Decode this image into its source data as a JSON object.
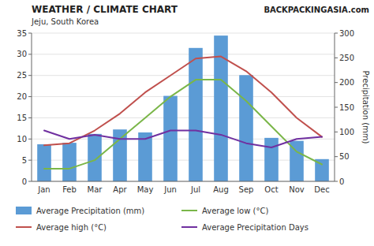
{
  "chart_data": {
    "type": "bar",
    "title": "WEATHER / CLIMATE CHART",
    "subtitle": "Jeju, South Korea",
    "annotations": [
      "BACKPACKINGASIA.com"
    ],
    "y2label": "Precipitation (mm)",
    "categories": [
      "Jan",
      "Feb",
      "Mar",
      "Apr",
      "May",
      "Jun",
      "Jul",
      "Aug",
      "Sep",
      "Oct",
      "Nov",
      "Dec"
    ],
    "series": [
      {
        "name": "Average Precipitation (mm)",
        "type": "bar",
        "axis": "y2",
        "color": "#5B9BD5",
        "values": [
          75,
          78,
          96,
          105,
          99,
          173,
          270,
          295,
          215,
          88,
          82,
          45
        ]
      },
      {
        "name": "Average low (°C)",
        "type": "line",
        "color": "#7AB648",
        "values": [
          3,
          3,
          5,
          10,
          15,
          20,
          24,
          24,
          19,
          13,
          7,
          4
        ]
      },
      {
        "name": "Average high (°C)",
        "type": "line",
        "color": "#C0504D",
        "values": [
          8.5,
          9,
          12,
          16,
          21,
          25,
          29,
          29.5,
          26,
          21,
          15,
          10.5
        ]
      },
      {
        "name": "Average Precipitation Days",
        "type": "line",
        "color": "#7030A0",
        "values": [
          12,
          10,
          11,
          10,
          10,
          12,
          12,
          11,
          9,
          8,
          10,
          10.5
        ]
      }
    ],
    "ylim": [
      0,
      35
    ],
    "yticks": [
      0,
      5,
      10,
      15,
      20,
      25,
      30,
      35
    ],
    "y2lim": [
      0,
      300
    ],
    "y2ticks": [
      0,
      50,
      100,
      150,
      200,
      250,
      300
    ],
    "grid": true,
    "legend": "bottom"
  }
}
